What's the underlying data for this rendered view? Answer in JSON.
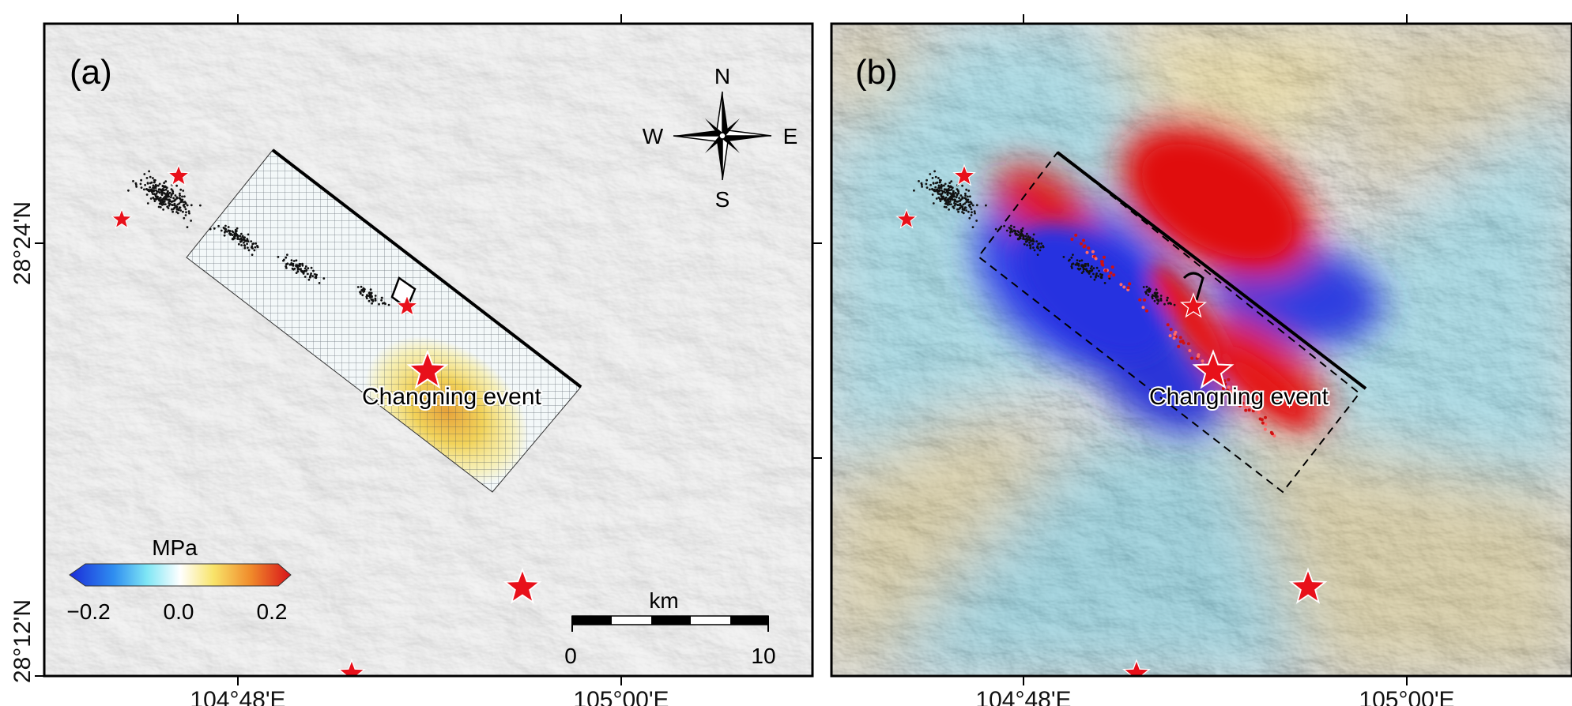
{
  "panels": [
    {
      "label": "(a)",
      "event_label": "Changning event",
      "compass": {
        "north": "N",
        "south": "S",
        "east": "E",
        "west": "W"
      },
      "colorbar": {
        "title": "MPa",
        "min_label": "−0.2",
        "mid_label": "0.0",
        "max_label": "0.2",
        "colormap": "blue-cyan-white-yellow-red"
      },
      "scalebar": {
        "unit": "km",
        "start_label": "0",
        "end_label": "10"
      },
      "x_tick_labels": [
        "104°48'E",
        "105°00'E"
      ],
      "y_tick_labels": [
        "28°24'N",
        "28°12'N"
      ]
    },
    {
      "label": "(b)",
      "event_label": "Changning event",
      "x_tick_labels": [
        "104°48'E",
        "105°00'E"
      ]
    }
  ],
  "colors": {
    "star": "#e8101a",
    "fault": "#000000",
    "positive_stress": "#e01818",
    "negative_stress": "#2020e0",
    "relief": "#e6e6e6"
  }
}
